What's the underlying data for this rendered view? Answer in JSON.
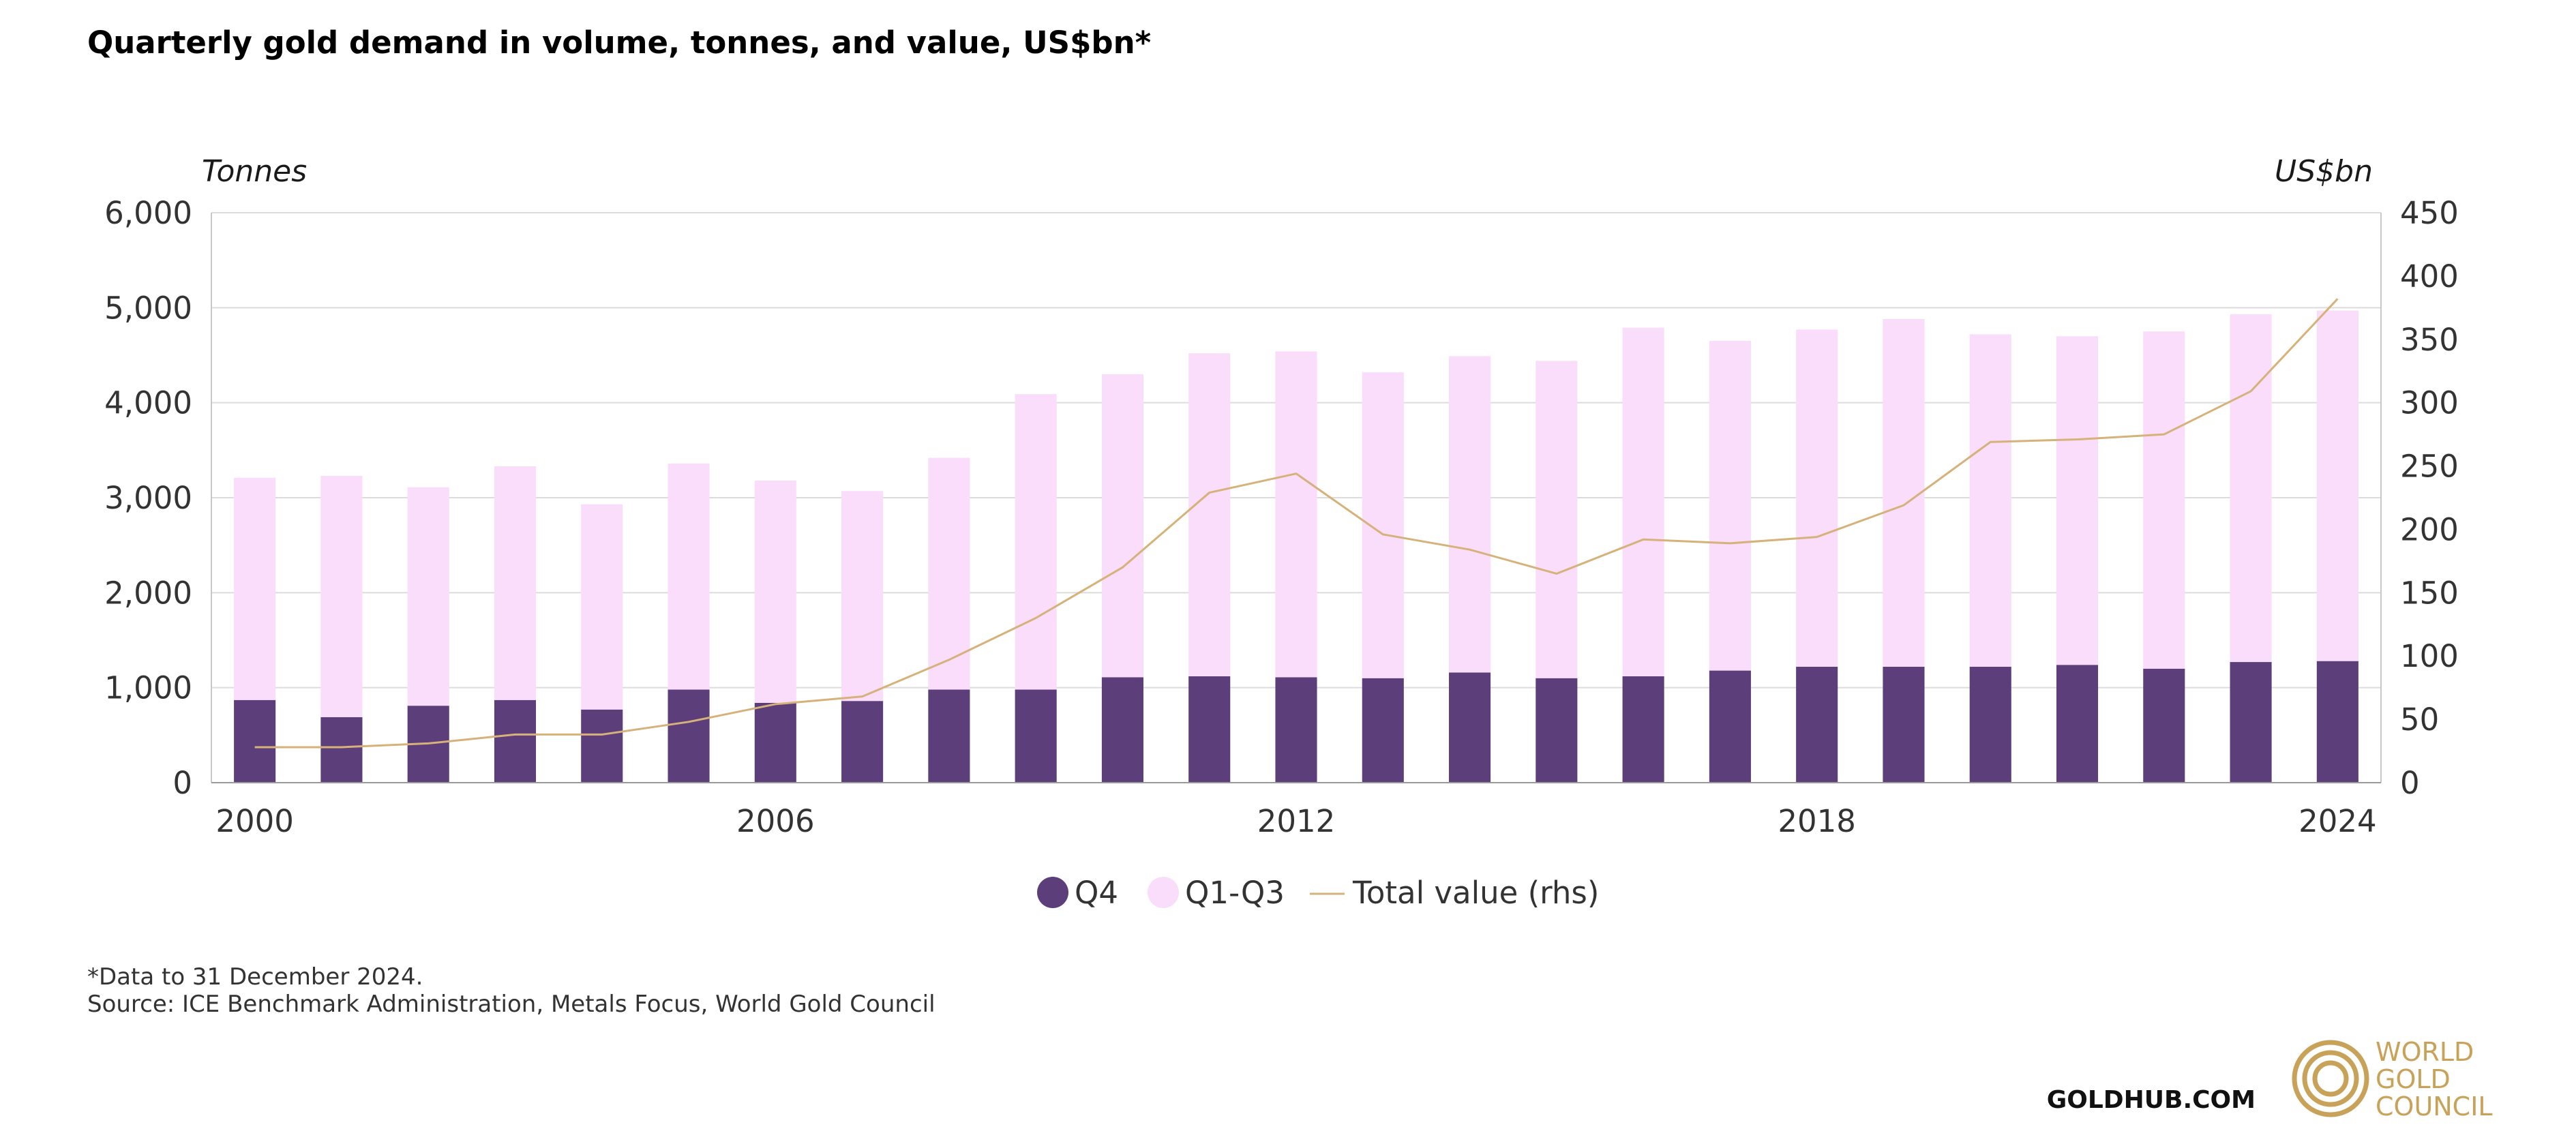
{
  "chart_data": {
    "type": "bar",
    "title": "Quarterly gold demand in volume, tonnes, and value, US$bn*",
    "y_left_label": "Tonnes",
    "y_right_label": "US$bn",
    "y_left_range": [
      0,
      6000
    ],
    "y_left_ticks": [
      "0",
      "1,000",
      "2,000",
      "3,000",
      "4,000",
      "5,000",
      "6,000"
    ],
    "y_right_range": [
      0,
      450
    ],
    "y_right_ticks": [
      "0",
      "50",
      "100",
      "150",
      "200",
      "250",
      "300",
      "350",
      "400",
      "450"
    ],
    "x_tick_labels": [
      "2000",
      "2006",
      "2012",
      "2018",
      "2024"
    ],
    "x": [
      2000,
      2001,
      2002,
      2003,
      2004,
      2005,
      2006,
      2007,
      2008,
      2009,
      2010,
      2011,
      2012,
      2013,
      2014,
      2015,
      2016,
      2017,
      2018,
      2019,
      2020,
      2021,
      2022,
      2023,
      2024
    ],
    "series": [
      {
        "name": "Q4",
        "kind": "stacked-bar",
        "color": "#5c3e7a",
        "values": [
          870,
          690,
          810,
          870,
          770,
          980,
          840,
          860,
          980,
          980,
          1110,
          1120,
          1110,
          1100,
          1160,
          1100,
          1120,
          1180,
          1220,
          1220,
          1220,
          1240,
          1200,
          1270,
          1280
        ]
      },
      {
        "name": "Q1-Q3",
        "kind": "stacked-bar",
        "color": "#f9ddfa",
        "values": [
          2340,
          2540,
          2300,
          2460,
          2160,
          2380,
          2340,
          2210,
          2440,
          3110,
          3190,
          3400,
          3430,
          3220,
          3330,
          3340,
          3670,
          3470,
          3550,
          3660,
          3500,
          3460,
          3550,
          3660,
          3690
        ]
      },
      {
        "name": "Total value (rhs)",
        "kind": "line",
        "axis": "right",
        "color": "#d6b27a",
        "values": [
          28,
          28,
          31,
          38,
          38,
          48,
          62,
          68,
          97,
          130,
          170,
          229,
          244,
          196,
          184,
          165,
          192,
          189,
          194,
          219,
          269,
          271,
          275,
          309,
          382
        ]
      }
    ],
    "legend_position": "bottom-center",
    "grid": true
  },
  "footnotes": {
    "note": "*Data to 31 December 2024.",
    "source": "Source: ICE Benchmark Administration, Metals Focus, World Gold Council"
  },
  "branding": {
    "site": "GOLDHUB.COM",
    "logo_lines": [
      "WORLD",
      "GOLD",
      "COUNCIL"
    ],
    "logo_color": "#c9a259"
  }
}
